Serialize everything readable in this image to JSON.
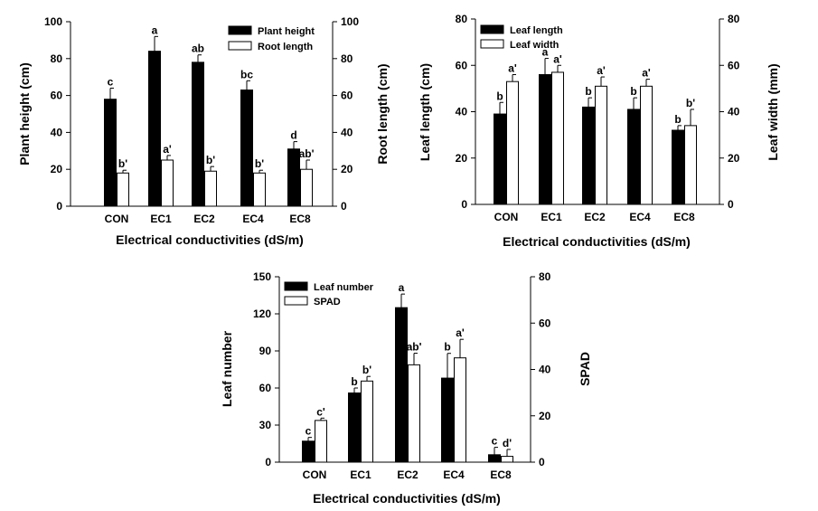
{
  "chart_data": [
    {
      "type": "bar",
      "categories": [
        "CON",
        "EC1",
        "EC2",
        "EC4",
        "EC8"
      ],
      "xlabel": "Electrical conductivities (dS/m)",
      "ylabel": "Plant height (cm)",
      "y2label": "Root length (cm)",
      "ylim": [
        0,
        100
      ],
      "y2lim": [
        0,
        100
      ],
      "yticks": [
        "0",
        "20",
        "40",
        "60",
        "80",
        "100"
      ],
      "y2ticks": [
        "0",
        "20",
        "40",
        "60",
        "80",
        "100"
      ],
      "legend_position": "top-right",
      "series": [
        {
          "name": "Plant height",
          "axis": "left",
          "color": "#000000",
          "values": [
            58,
            84,
            78,
            63,
            31
          ],
          "errors": [
            6,
            8,
            4,
            5,
            4
          ],
          "letters": [
            "c",
            "a",
            "ab",
            "bc",
            "d"
          ]
        },
        {
          "name": "Root length",
          "axis": "right",
          "color": "#ffffff",
          "values": [
            18,
            25,
            19,
            18,
            20
          ],
          "errors": [
            1.5,
            2.5,
            2.5,
            1.5,
            5
          ],
          "letters": [
            "b'",
            "a'",
            "b'",
            "b'",
            "ab'"
          ]
        }
      ]
    },
    {
      "type": "bar",
      "categories": [
        "CON",
        "EC1",
        "EC2",
        "EC4",
        "EC8"
      ],
      "xlabel": "Electrical conductivities (dS/m)",
      "ylabel": "Leaf length (cm)",
      "y2label": "Leaf width (mm)",
      "ylim": [
        0,
        80
      ],
      "y2lim": [
        0,
        80
      ],
      "yticks": [
        "0",
        "20",
        "40",
        "60",
        "80"
      ],
      "y2ticks": [
        "0",
        "20",
        "40",
        "60",
        "80"
      ],
      "legend_position": "top-left",
      "series": [
        {
          "name": "Leaf length",
          "axis": "left",
          "color": "#000000",
          "values": [
            39,
            56,
            42,
            41,
            32
          ],
          "errors": [
            5,
            7,
            4,
            5,
            2
          ],
          "letters": [
            "b",
            "a",
            "b",
            "b",
            "b"
          ]
        },
        {
          "name": "Leaf width",
          "axis": "right",
          "color": "#ffffff",
          "values": [
            53,
            57,
            51,
            51,
            34
          ],
          "errors": [
            3,
            3,
            4,
            3,
            7
          ],
          "letters": [
            "a'",
            "a'",
            "a'",
            "a'",
            "b'"
          ]
        }
      ]
    },
    {
      "type": "bar",
      "categories": [
        "CON",
        "EC1",
        "EC2",
        "EC4",
        "EC8"
      ],
      "xlabel": "Electrical conductivities (dS/m)",
      "ylabel": "Leaf number",
      "y2label": "SPAD",
      "ylim": [
        0,
        150
      ],
      "y2lim": [
        0,
        80
      ],
      "yticks": [
        "0",
        "30",
        "60",
        "90",
        "120",
        "150"
      ],
      "y2ticks": [
        "0",
        "20",
        "40",
        "60",
        "80"
      ],
      "legend_position": "top-left",
      "series": [
        {
          "name": "Leaf number",
          "axis": "left",
          "color": "#000000",
          "values": [
            17,
            56,
            125,
            68,
            6
          ],
          "errors": [
            3,
            4,
            11,
            20,
            6
          ],
          "letters": [
            "c",
            "b",
            "a",
            "b",
            "c"
          ]
        },
        {
          "name": "SPAD",
          "axis": "right",
          "color": "#ffffff",
          "values": [
            18,
            35,
            42,
            45,
            2.5
          ],
          "errors": [
            1,
            2,
            5,
            8,
            3
          ],
          "letters": [
            "c'",
            "b'",
            "ab'",
            "a'",
            "d'"
          ]
        }
      ]
    }
  ]
}
